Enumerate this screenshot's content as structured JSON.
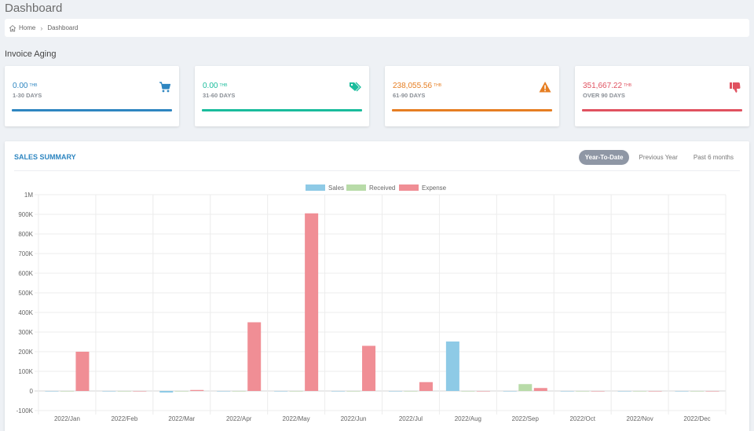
{
  "page": {
    "title": "Dashboard"
  },
  "breadcrumb": {
    "home": "Home",
    "current": "Dashboard"
  },
  "invoice_aging": {
    "title": "Invoice Aging",
    "cards": [
      {
        "amount": "0.00",
        "currency": "THB",
        "label": "1-30 DAYS",
        "icon": "shopping-cart-icon",
        "color": "#2e86c1"
      },
      {
        "amount": "0.00",
        "currency": "THB",
        "label": "31-60 DAYS",
        "icon": "tags-icon",
        "color": "#1abc9c"
      },
      {
        "amount": "238,055.56",
        "currency": "THB",
        "label": "61-90 DAYS",
        "icon": "warning-icon",
        "color": "#e67e22"
      },
      {
        "amount": "351,667.22",
        "currency": "THB",
        "label": "OVER 90 DAYS",
        "icon": "thumbs-down-icon",
        "color": "#e05260"
      }
    ]
  },
  "sales_summary": {
    "title": "SALES SUMMARY",
    "ranges": [
      "Year-To-Date",
      "Previous Year",
      "Past 6 months"
    ],
    "active_range": "Year-To-Date"
  },
  "chart_data": {
    "type": "bar",
    "categories": [
      "2022/Jan",
      "2022/Feb",
      "2022/Mar",
      "2022/Apr",
      "2022/May",
      "2022/Jun",
      "2022/Jul",
      "2022/Aug",
      "2022/Sep",
      "2022/Oct",
      "2022/Nov",
      "2022/Dec"
    ],
    "series": [
      {
        "name": "Sales",
        "color": "#8ecae6",
        "values": [
          0,
          0,
          -8000,
          0,
          0,
          0,
          0,
          252000,
          0,
          0,
          0,
          0
        ]
      },
      {
        "name": "Received",
        "color": "#b8dba8",
        "values": [
          0,
          0,
          0,
          0,
          0,
          0,
          0,
          0,
          35000,
          0,
          0,
          0
        ]
      },
      {
        "name": "Expense",
        "color": "#f08e95",
        "values": [
          200000,
          0,
          5000,
          350000,
          905000,
          230000,
          45000,
          0,
          15000,
          0,
          0,
          0
        ]
      }
    ],
    "yticks": [
      "1M",
      "900K",
      "800K",
      "700K",
      "600K",
      "500K",
      "400K",
      "300K",
      "200K",
      "100K",
      "0",
      "-100K"
    ],
    "ylim": [
      -100000,
      1000000
    ],
    "legend": "top",
    "grid": true
  }
}
